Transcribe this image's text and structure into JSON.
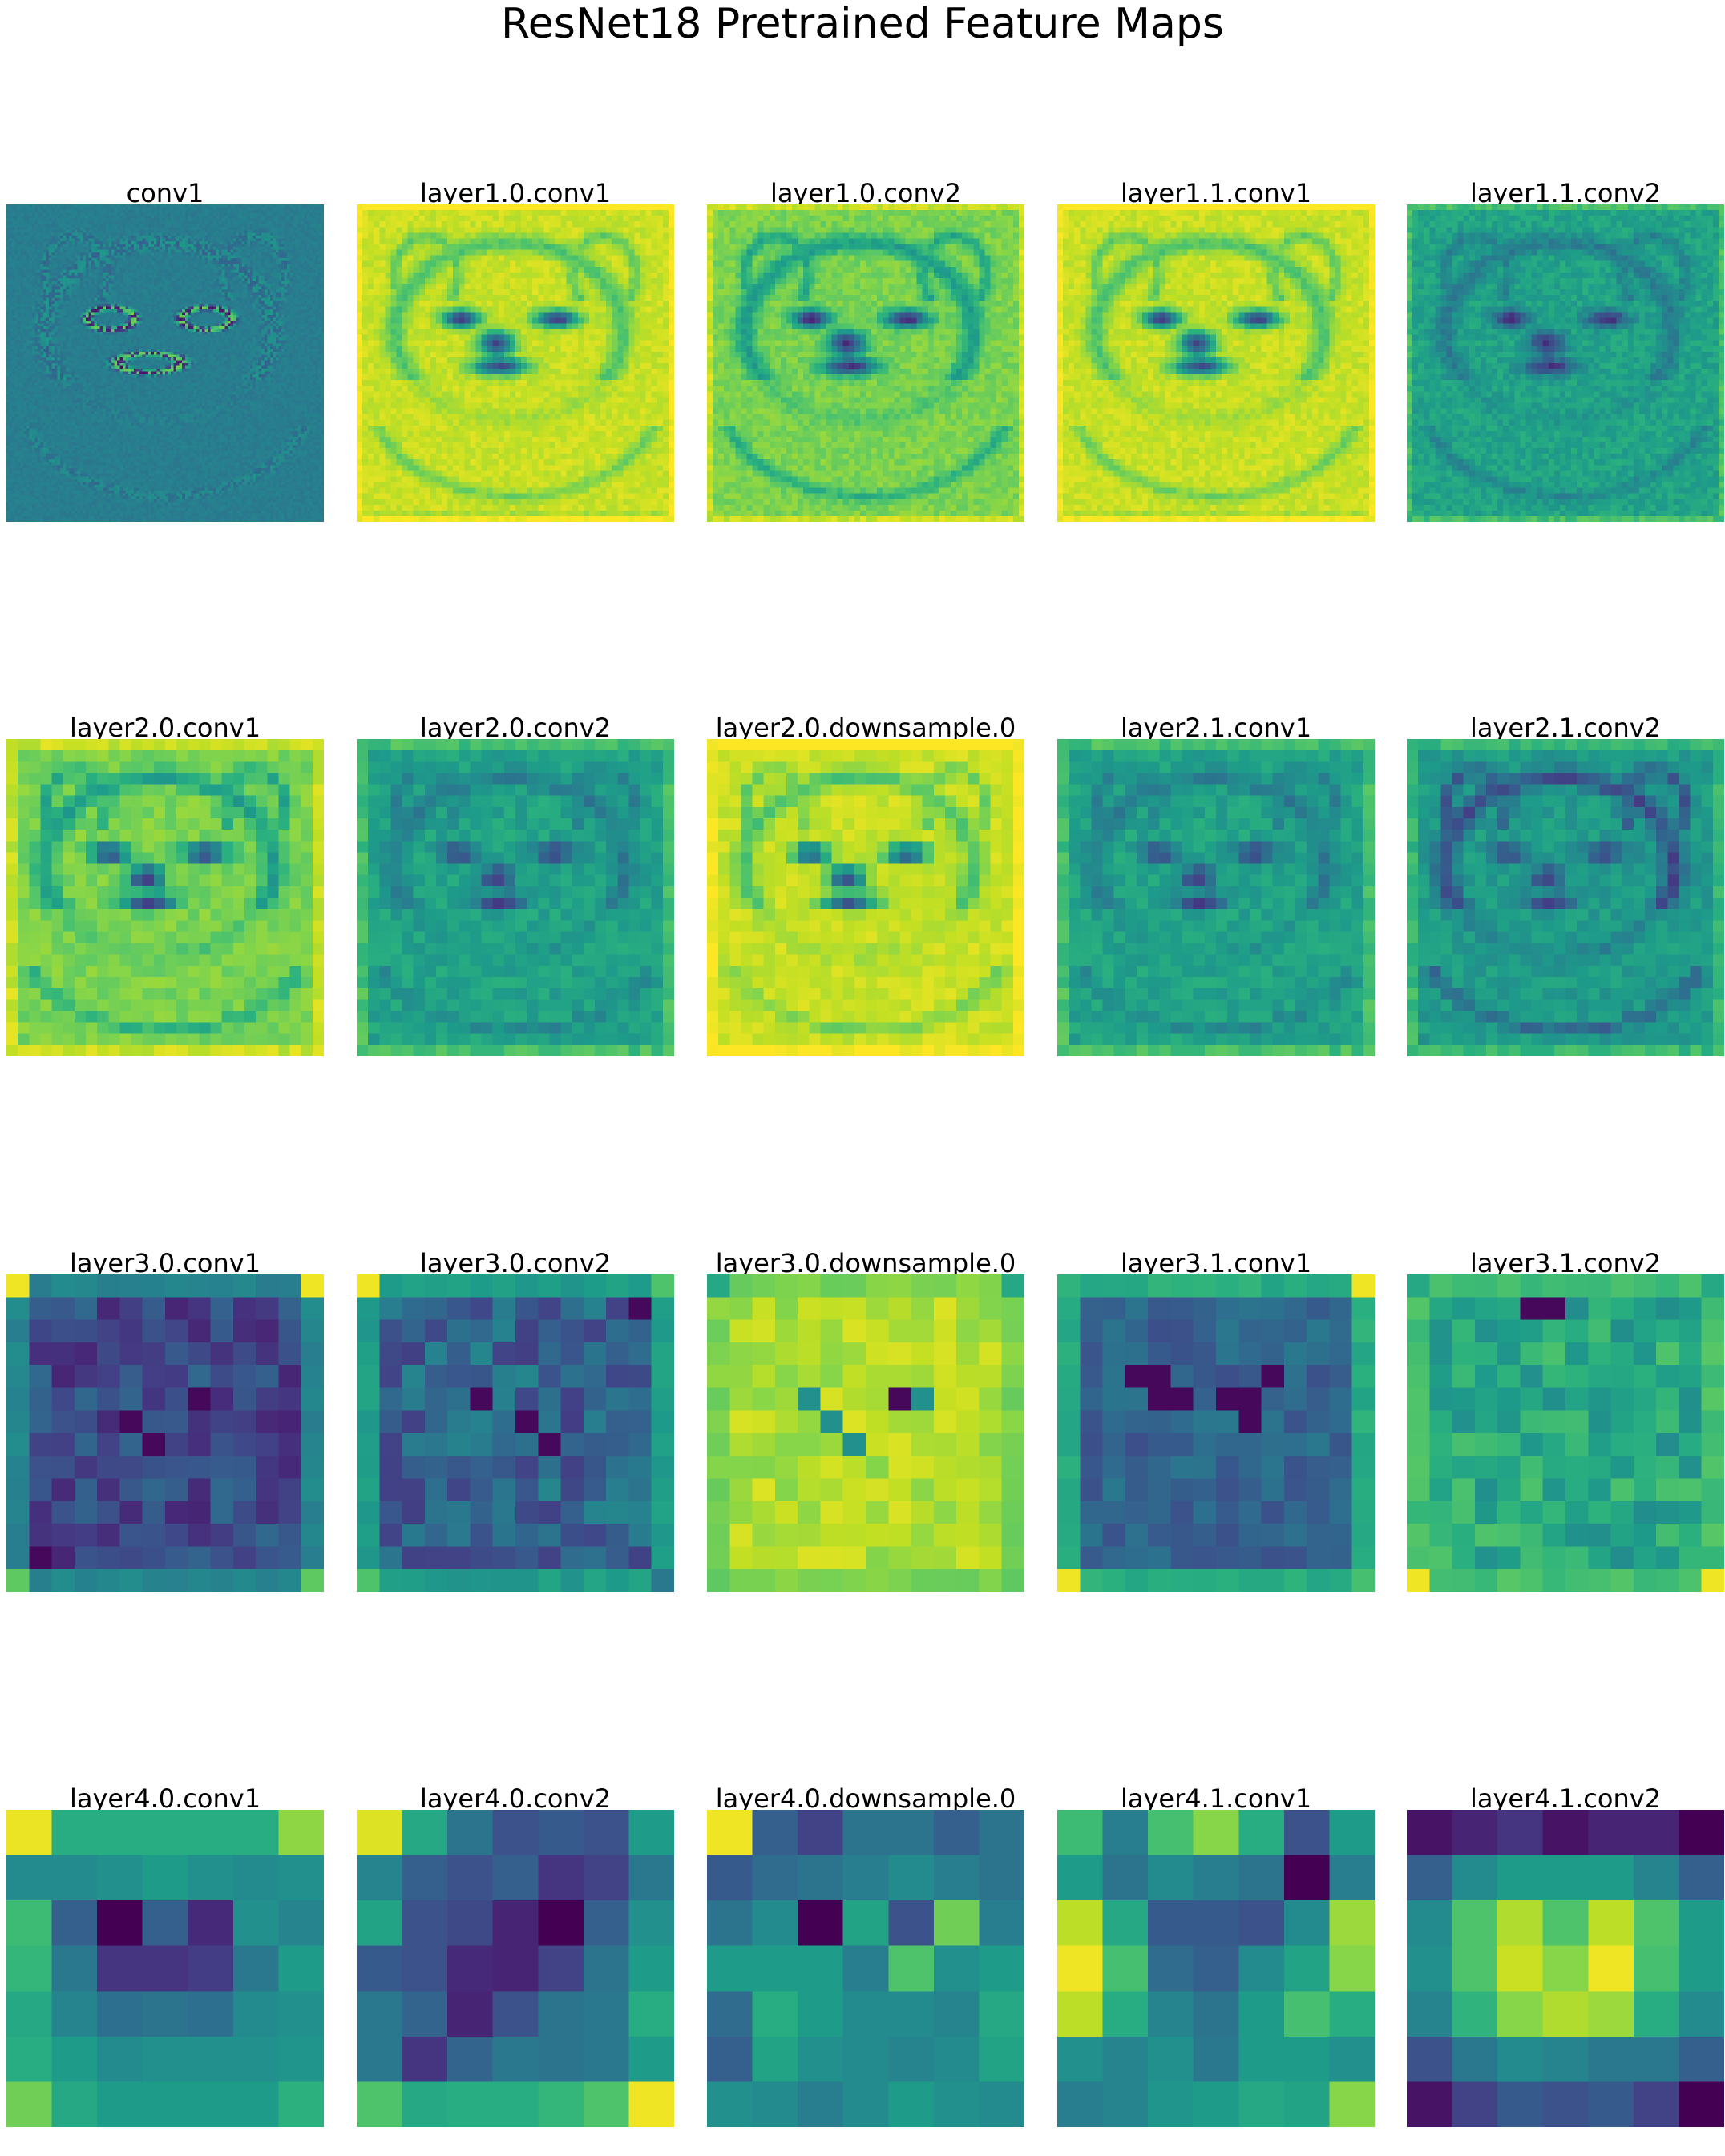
{
  "title": "ResNet18 Pretrained Feature Maps",
  "colormap": "viridis",
  "panels": [
    {
      "label": "conv1",
      "kind": "hi",
      "res": 112,
      "variant": "edge"
    },
    {
      "label": "layer1.0.conv1",
      "kind": "hi",
      "res": 56,
      "variant": "bright"
    },
    {
      "label": "layer1.0.conv2",
      "kind": "hi",
      "res": 56,
      "variant": "mid"
    },
    {
      "label": "layer1.1.conv1",
      "kind": "hi",
      "res": 56,
      "variant": "bright"
    },
    {
      "label": "layer1.1.conv2",
      "kind": "hi",
      "res": 56,
      "variant": "teal"
    },
    {
      "label": "layer2.0.conv1",
      "kind": "hi",
      "res": 28,
      "variant": "mid"
    },
    {
      "label": "layer2.0.conv2",
      "kind": "hi",
      "res": 28,
      "variant": "teal"
    },
    {
      "label": "layer2.0.downsample.0",
      "kind": "hi",
      "res": 28,
      "variant": "bright"
    },
    {
      "label": "layer2.1.conv1",
      "kind": "hi",
      "res": 28,
      "variant": "teal"
    },
    {
      "label": "layer2.1.conv2",
      "kind": "hi",
      "res": 28,
      "variant": "outline"
    },
    {
      "label": "layer3.0.conv1",
      "kind": "grid",
      "size": 14,
      "seed": 11,
      "base": 0.22,
      "noise": 0.12,
      "corners": {
        "tl": 0.98,
        "tr": 0.98,
        "bl": 0.75,
        "br": 0.75
      },
      "border": 0.45,
      "dark": [
        [
          5,
          8
        ],
        [
          6,
          5
        ],
        [
          7,
          6
        ],
        [
          12,
          1
        ]
      ]
    },
    {
      "label": "layer3.0.conv2",
      "kind": "grid",
      "size": 14,
      "seed": 23,
      "base": 0.32,
      "noise": 0.14,
      "corners": {
        "tl": 0.98,
        "tr": 0.72,
        "bl": 0.72,
        "br": 0.4
      },
      "border": 0.55,
      "dark": [
        [
          1,
          12
        ],
        [
          5,
          5
        ],
        [
          6,
          7
        ],
        [
          7,
          8
        ]
      ]
    },
    {
      "label": "layer3.0.downsample.0",
      "kind": "grid",
      "size": 14,
      "seed": 37,
      "base": 0.88,
      "noise": 0.07,
      "corners": {
        "tl": 0.6,
        "tr": 0.6,
        "bl": 0.75,
        "br": 0.75
      },
      "border": 0.8,
      "dark": [
        [
          5,
          8
        ]
      ],
      "mids": [
        [
          5,
          4
        ],
        [
          5,
          9
        ],
        [
          6,
          5
        ],
        [
          7,
          6
        ]
      ]
    },
    {
      "label": "layer3.1.conv1",
      "kind": "grid",
      "size": 14,
      "seed": 41,
      "base": 0.32,
      "noise": 0.08,
      "corners": {
        "tl": 0.65,
        "tr": 0.98,
        "bl": 0.98,
        "br": 0.7
      },
      "border": 0.62,
      "dark": [
        [
          4,
          3
        ],
        [
          4,
          4
        ],
        [
          5,
          4
        ],
        [
          5,
          5
        ],
        [
          5,
          7
        ],
        [
          5,
          8
        ],
        [
          6,
          8
        ],
        [
          4,
          9
        ]
      ]
    },
    {
      "label": "layer3.1.conv2",
      "kind": "grid",
      "size": 14,
      "seed": 53,
      "base": 0.6,
      "noise": 0.12,
      "corners": {
        "tl": 0.6,
        "tr": 0.6,
        "bl": 0.98,
        "br": 0.98
      },
      "border": 0.7,
      "dark": [
        [
          1,
          5
        ],
        [
          1,
          6
        ]
      ]
    },
    {
      "label": "layer4.0.conv1",
      "kind": "grid7",
      "values": [
        [
          0.97,
          0.62,
          0.62,
          0.62,
          0.62,
          0.62,
          0.83
        ],
        [
          0.48,
          0.48,
          0.5,
          0.55,
          0.5,
          0.48,
          0.5
        ],
        [
          0.68,
          0.3,
          0.0,
          0.3,
          0.12,
          0.5,
          0.45
        ],
        [
          0.66,
          0.4,
          0.15,
          0.15,
          0.18,
          0.4,
          0.55
        ],
        [
          0.6,
          0.45,
          0.36,
          0.38,
          0.36,
          0.48,
          0.5
        ],
        [
          0.62,
          0.55,
          0.48,
          0.5,
          0.5,
          0.5,
          0.52
        ],
        [
          0.78,
          0.6,
          0.55,
          0.55,
          0.55,
          0.55,
          0.64
        ]
      ]
    },
    {
      "label": "layer4.0.conv2",
      "kind": "grid7",
      "values": [
        [
          0.95,
          0.6,
          0.38,
          0.25,
          0.28,
          0.25,
          0.55
        ],
        [
          0.45,
          0.3,
          0.25,
          0.3,
          0.15,
          0.2,
          0.4
        ],
        [
          0.58,
          0.25,
          0.22,
          0.1,
          0.0,
          0.3,
          0.5
        ],
        [
          0.28,
          0.25,
          0.12,
          0.1,
          0.2,
          0.38,
          0.55
        ],
        [
          0.4,
          0.32,
          0.1,
          0.25,
          0.38,
          0.4,
          0.62
        ],
        [
          0.4,
          0.15,
          0.32,
          0.4,
          0.38,
          0.4,
          0.55
        ],
        [
          0.72,
          0.6,
          0.62,
          0.62,
          0.66,
          0.72,
          0.98
        ]
      ]
    },
    {
      "label": "layer4.0.downsample.0",
      "kind": "grid7",
      "values": [
        [
          0.98,
          0.3,
          0.2,
          0.38,
          0.38,
          0.3,
          0.38
        ],
        [
          0.28,
          0.35,
          0.38,
          0.42,
          0.48,
          0.42,
          0.38
        ],
        [
          0.38,
          0.48,
          0.0,
          0.58,
          0.25,
          0.78,
          0.42
        ],
        [
          0.55,
          0.55,
          0.55,
          0.42,
          0.72,
          0.5,
          0.55
        ],
        [
          0.35,
          0.62,
          0.55,
          0.48,
          0.48,
          0.45,
          0.6
        ],
        [
          0.3,
          0.58,
          0.5,
          0.48,
          0.45,
          0.48,
          0.58
        ],
        [
          0.5,
          0.48,
          0.42,
          0.48,
          0.55,
          0.5,
          0.48
        ]
      ]
    },
    {
      "label": "layer4.1.conv1",
      "kind": "grid7",
      "values": [
        [
          0.68,
          0.42,
          0.7,
          0.82,
          0.62,
          0.25,
          0.55
        ],
        [
          0.55,
          0.38,
          0.48,
          0.42,
          0.38,
          0.0,
          0.42
        ],
        [
          0.9,
          0.6,
          0.28,
          0.28,
          0.25,
          0.48,
          0.85
        ],
        [
          0.98,
          0.7,
          0.35,
          0.3,
          0.48,
          0.58,
          0.82
        ],
        [
          0.9,
          0.62,
          0.45,
          0.38,
          0.55,
          0.7,
          0.62
        ],
        [
          0.5,
          0.45,
          0.5,
          0.4,
          0.55,
          0.55,
          0.5
        ],
        [
          0.42,
          0.45,
          0.52,
          0.55,
          0.6,
          0.58,
          0.82
        ]
      ]
    },
    {
      "label": "layer4.1.conv2",
      "kind": "grid7",
      "values": [
        [
          0.05,
          0.1,
          0.15,
          0.05,
          0.1,
          0.1,
          0.0
        ],
        [
          0.3,
          0.48,
          0.55,
          0.55,
          0.55,
          0.45,
          0.3
        ],
        [
          0.48,
          0.72,
          0.88,
          0.72,
          0.9,
          0.72,
          0.55
        ],
        [
          0.5,
          0.72,
          0.92,
          0.82,
          0.98,
          0.7,
          0.55
        ],
        [
          0.45,
          0.65,
          0.82,
          0.88,
          0.85,
          0.62,
          0.48
        ],
        [
          0.25,
          0.4,
          0.48,
          0.45,
          0.4,
          0.4,
          0.3
        ],
        [
          0.05,
          0.2,
          0.28,
          0.25,
          0.28,
          0.2,
          0.0
        ]
      ]
    }
  ]
}
